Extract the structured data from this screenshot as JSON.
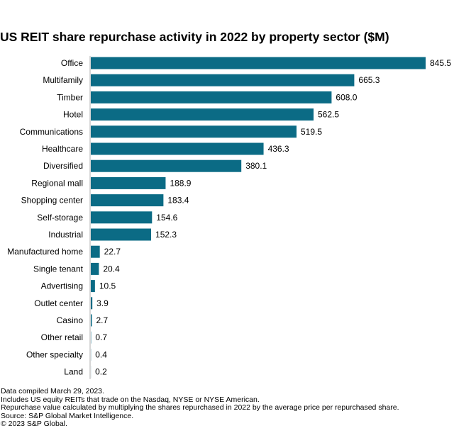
{
  "colors": {
    "bar": "#0b6b85",
    "text": "#000000",
    "axis": "#9a9a9a"
  },
  "chart_data": {
    "type": "bar",
    "orientation": "horizontal",
    "title": "US REIT share repurchase activity in 2022 by property sector ($M)",
    "xlabel": "",
    "ylabel": "",
    "xlim": [
      0,
      845.5
    ],
    "grid": false,
    "legend": "none",
    "categories": [
      "Office",
      "Multifamily",
      "Timber",
      "Hotel",
      "Communications",
      "Healthcare",
      "Diversified",
      "Regional mall",
      "Shopping center",
      "Self-storage",
      "Industrial",
      "Manufactured home",
      "Single tenant",
      "Advertising",
      "Outlet center",
      "Casino",
      "Other retail",
      "Other specialty",
      "Land"
    ],
    "values": [
      845.5,
      665.3,
      608.0,
      562.5,
      519.5,
      436.3,
      380.1,
      188.9,
      183.4,
      154.6,
      152.3,
      22.7,
      20.4,
      10.5,
      3.9,
      2.7,
      0.7,
      0.4,
      0.2
    ],
    "data_labels": [
      "845.5",
      "665.3",
      "608.0",
      "562.5",
      "519.5",
      "436.3",
      "380.1",
      "188.9",
      "183.4",
      "154.6",
      "152.3",
      "22.7",
      "20.4",
      "10.5",
      "3.9",
      "2.7",
      "0.7",
      "0.4",
      "0.2"
    ]
  },
  "footnotes": [
    "Data compiled March 29, 2023.",
    "Includes US equity REITs that trade on the Nasdaq, NYSE or NYSE American.",
    "Repurchase value calculated by multiplying the shares repurchased in 2022 by the average price per repurchased share.",
    "Source: S&P Global Market Intelligence.",
    "© 2023 S&P Global."
  ]
}
